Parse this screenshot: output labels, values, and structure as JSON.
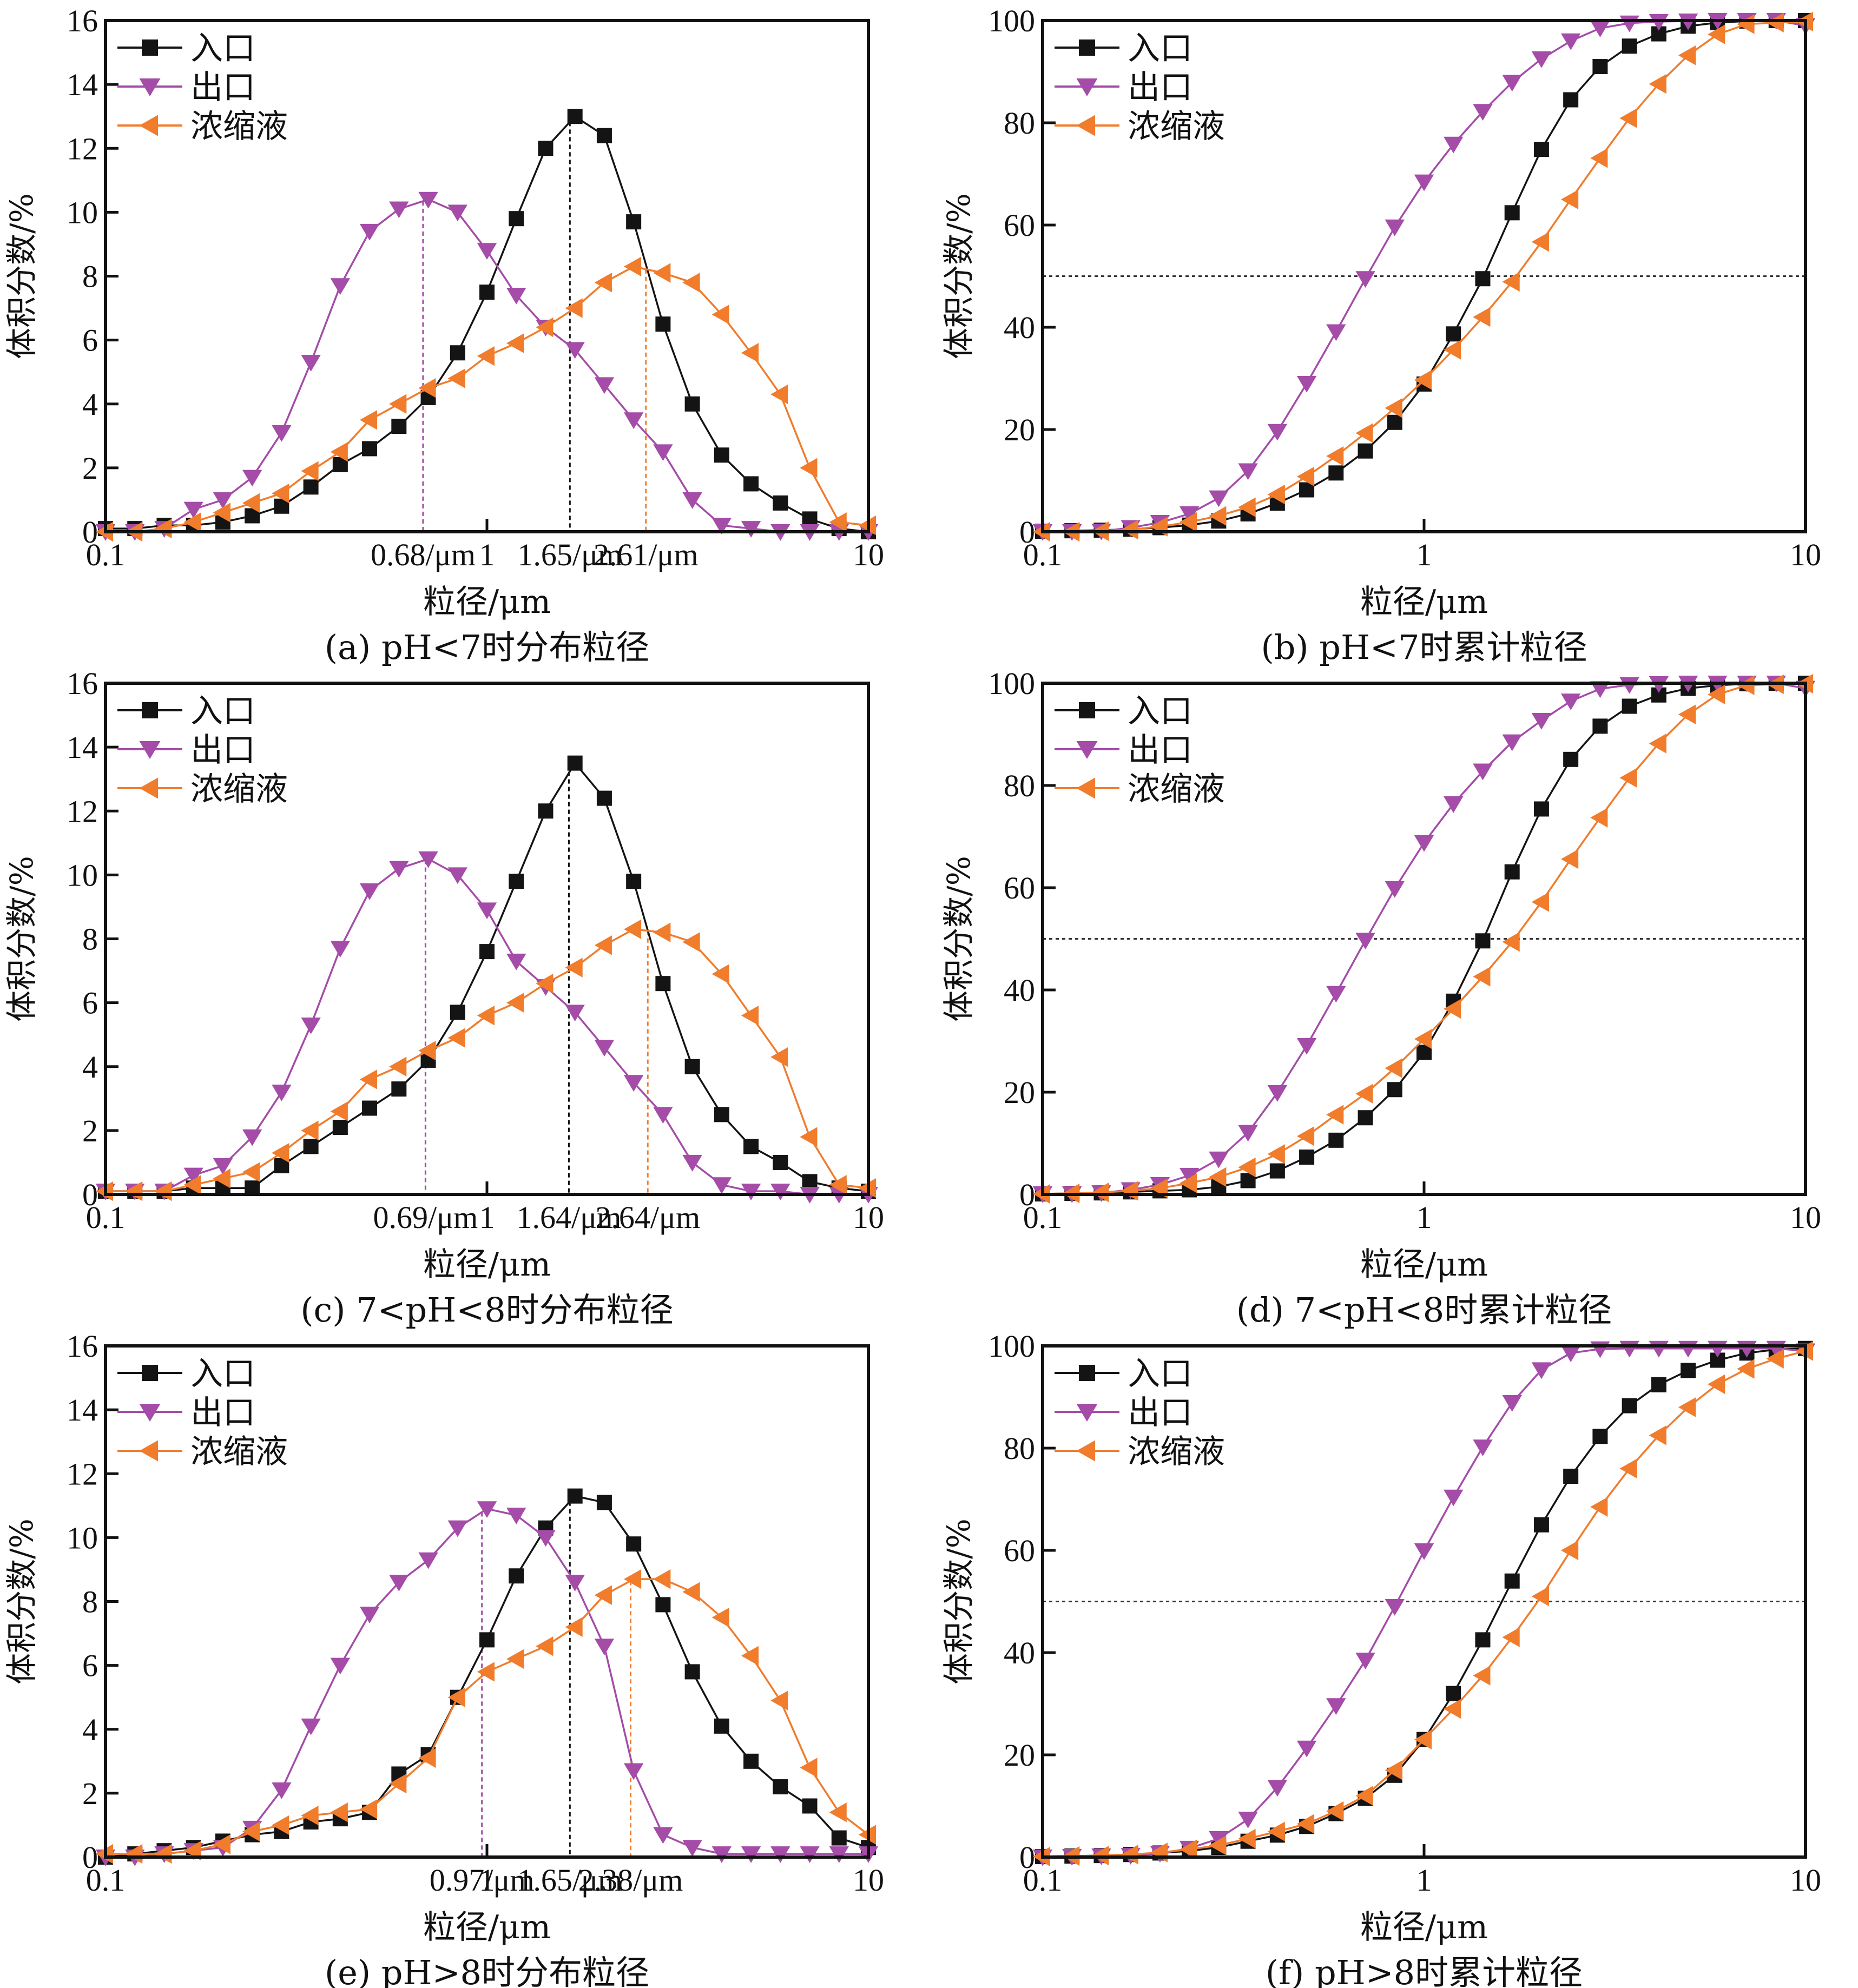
{
  "colors": {
    "inlet": "#141414",
    "outlet": "#A44CA8",
    "concentrate": "#F07C2C"
  },
  "legend": [
    "入口",
    "出口",
    "浓缩液"
  ],
  "chart_data": [
    {
      "id": "a",
      "type": "line",
      "title": "(a) pH<7时分布粒径",
      "xlabel": "粒径/μm",
      "ylabel": "体积分数/%",
      "xscale": "log",
      "xlim": [
        0.1,
        10
      ],
      "ylim": [
        0,
        16
      ],
      "yticks": [
        0,
        2,
        4,
        6,
        8,
        10,
        12,
        14,
        16
      ],
      "xtick_labels": [
        "0.1",
        "0.68/μm",
        "1",
        "1.65/μm",
        "2.61/μm",
        "10"
      ],
      "xtick_values": [
        0.1,
        0.68,
        1,
        1.65,
        2.61,
        10
      ],
      "legend_position": "top-left",
      "markers": [
        {
          "x": 0.68,
          "series": "出口"
        },
        {
          "x": 1.65,
          "series": "入口"
        },
        {
          "x": 2.61,
          "series": "浓缩液"
        }
      ],
      "series": [
        {
          "name": "入口",
          "values": [
            0.1,
            0.1,
            0.2,
            0.2,
            0.3,
            0.5,
            0.8,
            1.4,
            2.1,
            2.6,
            3.3,
            4.2,
            5.6,
            7.5,
            9.8,
            12.0,
            13.0,
            12.4,
            9.7,
            6.5,
            4.0,
            2.4,
            1.5,
            0.9,
            0.4,
            0.1,
            0.0
          ]
        },
        {
          "name": "出口",
          "values": [
            0.0,
            0.0,
            0.1,
            0.7,
            1.0,
            1.7,
            3.1,
            5.3,
            7.7,
            9.4,
            10.1,
            10.4,
            10.0,
            8.8,
            7.4,
            6.4,
            5.7,
            4.6,
            3.5,
            2.5,
            1.0,
            0.2,
            0.1,
            0.0,
            0.0,
            0.0,
            0.0
          ]
        },
        {
          "name": "浓缩液",
          "values": [
            0.0,
            0.0,
            0.1,
            0.3,
            0.6,
            0.9,
            1.2,
            1.9,
            2.5,
            3.5,
            4.0,
            4.5,
            4.8,
            5.5,
            5.9,
            6.4,
            7.0,
            7.8,
            8.3,
            8.1,
            7.8,
            6.8,
            5.6,
            4.3,
            2.0,
            0.3,
            0.2
          ]
        }
      ]
    },
    {
      "id": "b",
      "type": "line",
      "title": "(b) pH<7时累计粒径",
      "xlabel": "粒径/μm",
      "ylabel": "体积分数/%",
      "xscale": "log",
      "xlim": [
        0.1,
        10
      ],
      "ylim": [
        0,
        100
      ],
      "yticks": [
        0,
        20,
        40,
        60,
        80,
        100
      ],
      "xtick_labels": [
        "0.1",
        "1",
        "10"
      ],
      "xtick_values": [
        0.1,
        1,
        10
      ],
      "reference_line_y": 50,
      "legend_position": "top-left",
      "series": [
        {
          "name": "入口",
          "values": [
            0.1,
            0.2,
            0.3,
            0.5,
            0.8,
            1.3,
            2.1,
            3.5,
            5.6,
            8.2,
            11.5,
            15.8,
            21.4,
            28.9,
            38.7,
            49.5,
            62.4,
            74.8,
            84.5,
            91.0,
            95.0,
            97.4,
            98.9,
            99.6,
            99.9,
            100,
            100
          ]
        },
        {
          "name": "出口",
          "values": [
            0.0,
            0.0,
            0.1,
            0.8,
            1.8,
            3.5,
            6.6,
            11.9,
            19.6,
            29.0,
            39.1,
            49.5,
            59.6,
            68.4,
            75.8,
            82.2,
            87.9,
            92.5,
            96.0,
            98.5,
            99.5,
            99.8,
            99.9,
            100,
            100,
            100,
            99
          ]
        },
        {
          "name": "浓缩液",
          "values": [
            0.0,
            0.0,
            0.1,
            0.4,
            1.0,
            1.9,
            3.1,
            4.8,
            7.3,
            10.8,
            14.8,
            19.3,
            24.2,
            29.7,
            35.6,
            42.0,
            48.9,
            56.7,
            65.0,
            73.1,
            80.9,
            87.6,
            93.2,
            97.3,
            99.3,
            99.6,
            99.8
          ]
        }
      ]
    },
    {
      "id": "c",
      "type": "line",
      "title": "(c) 7<pH<8时分布粒径",
      "xlabel": "粒径/μm",
      "ylabel": "体积分数/%",
      "xscale": "log",
      "xlim": [
        0.1,
        10
      ],
      "ylim": [
        0,
        16
      ],
      "yticks": [
        0,
        2,
        4,
        6,
        8,
        10,
        12,
        14,
        16
      ],
      "xtick_labels": [
        "0.1",
        "0.69/μm",
        "1",
        "1.64/μm",
        "2.64/μm",
        "10"
      ],
      "xtick_values": [
        0.1,
        0.69,
        1,
        1.64,
        2.64,
        10
      ],
      "legend_position": "top-left",
      "markers": [
        {
          "x": 0.69,
          "series": "出口"
        },
        {
          "x": 1.64,
          "series": "入口"
        },
        {
          "x": 2.64,
          "series": "浓缩液"
        }
      ],
      "series": [
        {
          "name": "入口",
          "values": [
            0.1,
            0.1,
            0.1,
            0.2,
            0.2,
            0.2,
            0.9,
            1.5,
            2.1,
            2.7,
            3.3,
            4.2,
            5.7,
            7.6,
            9.8,
            12.0,
            13.5,
            12.4,
            9.8,
            6.6,
            4.0,
            2.5,
            1.5,
            1.0,
            0.4,
            0.2,
            0.1
          ]
        },
        {
          "name": "出口",
          "values": [
            0.1,
            0.1,
            0.1,
            0.6,
            0.9,
            1.8,
            3.2,
            5.3,
            7.7,
            9.5,
            10.2,
            10.5,
            10.0,
            8.9,
            7.3,
            6.5,
            5.7,
            4.6,
            3.5,
            2.5,
            1.0,
            0.3,
            0.1,
            0.1,
            0.0,
            0.0,
            0.0
          ]
        },
        {
          "name": "浓缩液",
          "values": [
            0.1,
            0.1,
            0.1,
            0.3,
            0.5,
            0.7,
            1.3,
            2.0,
            2.6,
            3.6,
            4.0,
            4.5,
            4.9,
            5.6,
            6.0,
            6.6,
            7.1,
            7.8,
            8.3,
            8.2,
            7.9,
            6.9,
            5.6,
            4.3,
            1.8,
            0.3,
            0.2
          ]
        }
      ]
    },
    {
      "id": "d",
      "type": "line",
      "title": "(d) 7<pH<8时累计粒径",
      "xlabel": "粒径/μm",
      "ylabel": "体积分数/%",
      "xscale": "log",
      "xlim": [
        0.1,
        10
      ],
      "ylim": [
        0,
        100
      ],
      "yticks": [
        0,
        20,
        40,
        60,
        80,
        100
      ],
      "xtick_labels": [
        "0.1",
        "1",
        "10"
      ],
      "xtick_values": [
        0.1,
        1,
        10
      ],
      "reference_line_y": 50,
      "legend_position": "top-left",
      "series": [
        {
          "name": "入口",
          "values": [
            0.1,
            0.2,
            0.3,
            0.5,
            0.7,
            0.9,
            1.5,
            2.7,
            4.6,
            7.3,
            10.6,
            15.0,
            20.5,
            27.8,
            37.8,
            49.6,
            63.1,
            75.4,
            85.1,
            91.6,
            95.5,
            97.7,
            99.0,
            99.6,
            99.9,
            100,
            100
          ]
        },
        {
          "name": "出口",
          "values": [
            0.1,
            0.1,
            0.3,
            0.9,
            1.9,
            3.7,
            6.9,
            12.1,
            19.9,
            29.1,
            39.3,
            49.7,
            59.8,
            68.8,
            76.4,
            82.8,
            88.5,
            92.7,
            96.5,
            98.9,
            99.7,
            99.9,
            100,
            100,
            100,
            100,
            99
          ]
        },
        {
          "name": "浓缩液",
          "values": [
            0.1,
            0.2,
            0.4,
            0.7,
            1.2,
            2.2,
            3.4,
            5.3,
            7.9,
            11.4,
            15.6,
            19.7,
            24.7,
            30.4,
            36.3,
            42.6,
            49.4,
            57.2,
            65.6,
            73.7,
            81.5,
            88.2,
            93.9,
            97.8,
            99.6,
            99.8,
            99.9
          ]
        }
      ]
    },
    {
      "id": "e",
      "type": "line",
      "title": "(e) pH>8时分布粒径",
      "xlabel": "粒径/μm",
      "ylabel": "体积分数/%",
      "xscale": "log",
      "xlim": [
        0.1,
        10
      ],
      "ylim": [
        0,
        16
      ],
      "yticks": [
        0,
        2,
        4,
        6,
        8,
        10,
        12,
        14,
        16
      ],
      "xtick_labels": [
        "0.1",
        "0.97/μm",
        "1",
        "1.65/μm",
        "2.38/μm",
        "10"
      ],
      "xtick_values": [
        0.1,
        0.97,
        1,
        1.65,
        2.38,
        10
      ],
      "legend_position": "top-left",
      "markers": [
        {
          "x": 0.97,
          "series": "出口"
        },
        {
          "x": 1.65,
          "series": "入口"
        },
        {
          "x": 2.38,
          "series": "浓缩液"
        }
      ],
      "series": [
        {
          "name": "入口",
          "values": [
            0.0,
            0.1,
            0.2,
            0.3,
            0.5,
            0.7,
            0.8,
            1.1,
            1.2,
            1.4,
            2.6,
            3.2,
            5.0,
            6.8,
            8.8,
            10.3,
            11.3,
            11.1,
            9.8,
            7.9,
            5.8,
            4.1,
            3.0,
            2.2,
            1.6,
            0.6,
            0.3
          ]
        },
        {
          "name": "出口",
          "values": [
            0.0,
            0.0,
            0.1,
            0.2,
            0.3,
            0.9,
            2.1,
            4.1,
            6.0,
            7.6,
            8.6,
            9.3,
            10.3,
            10.9,
            10.7,
            10.0,
            8.6,
            6.6,
            2.7,
            0.7,
            0.3,
            0.1,
            0.1,
            0.1,
            0.1,
            0.1,
            0.1
          ]
        },
        {
          "name": "浓缩液",
          "values": [
            0.1,
            0.1,
            0.1,
            0.2,
            0.4,
            0.8,
            1.0,
            1.3,
            1.4,
            1.5,
            2.3,
            3.1,
            5.0,
            5.8,
            6.2,
            6.6,
            7.2,
            8.2,
            8.7,
            8.7,
            8.3,
            7.5,
            6.3,
            4.9,
            2.8,
            1.4,
            0.7
          ]
        }
      ]
    },
    {
      "id": "f",
      "type": "line",
      "title": "(f) pH>8时累计粒径",
      "xlabel": "粒径/μm",
      "ylabel": "体积分数/%",
      "xscale": "log",
      "xlim": [
        0.1,
        10
      ],
      "ylim": [
        0,
        100
      ],
      "yticks": [
        0,
        20,
        40,
        60,
        80,
        100
      ],
      "xtick_labels": [
        "0.1",
        "1",
        "10"
      ],
      "xtick_values": [
        0.1,
        1,
        10
      ],
      "reference_line_y": 50,
      "legend_position": "top-left",
      "series": [
        {
          "name": "入口",
          "values": [
            0.1,
            0.2,
            0.3,
            0.5,
            0.8,
            1.2,
            1.9,
            3.1,
            4.3,
            6.0,
            8.5,
            11.5,
            16.0,
            23.0,
            32.0,
            42.5,
            54.0,
            65.0,
            74.5,
            82.3,
            88.3,
            92.4,
            95.2,
            97.2,
            98.6,
            99.3,
            99.5
          ]
        },
        {
          "name": "出口",
          "values": [
            0.0,
            0.1,
            0.2,
            0.3,
            0.7,
            1.7,
            3.6,
            7.4,
            13.6,
            21.3,
            29.6,
            38.5,
            49.0,
            59.9,
            70.4,
            80.2,
            88.9,
            95.3,
            98.6,
            99.4,
            99.5,
            99.5,
            99.5,
            99.5,
            99.5,
            99.5,
            99.0
          ]
        },
        {
          "name": "浓缩液",
          "values": [
            0.1,
            0.2,
            0.3,
            0.5,
            0.9,
            1.5,
            2.3,
            3.6,
            5.0,
            6.5,
            9.0,
            12.0,
            17.0,
            23.0,
            29.0,
            35.5,
            43.0,
            51.0,
            60.0,
            68.5,
            76.0,
            82.5,
            88.0,
            92.5,
            95.5,
            97.5,
            99.0
          ]
        }
      ]
    }
  ]
}
